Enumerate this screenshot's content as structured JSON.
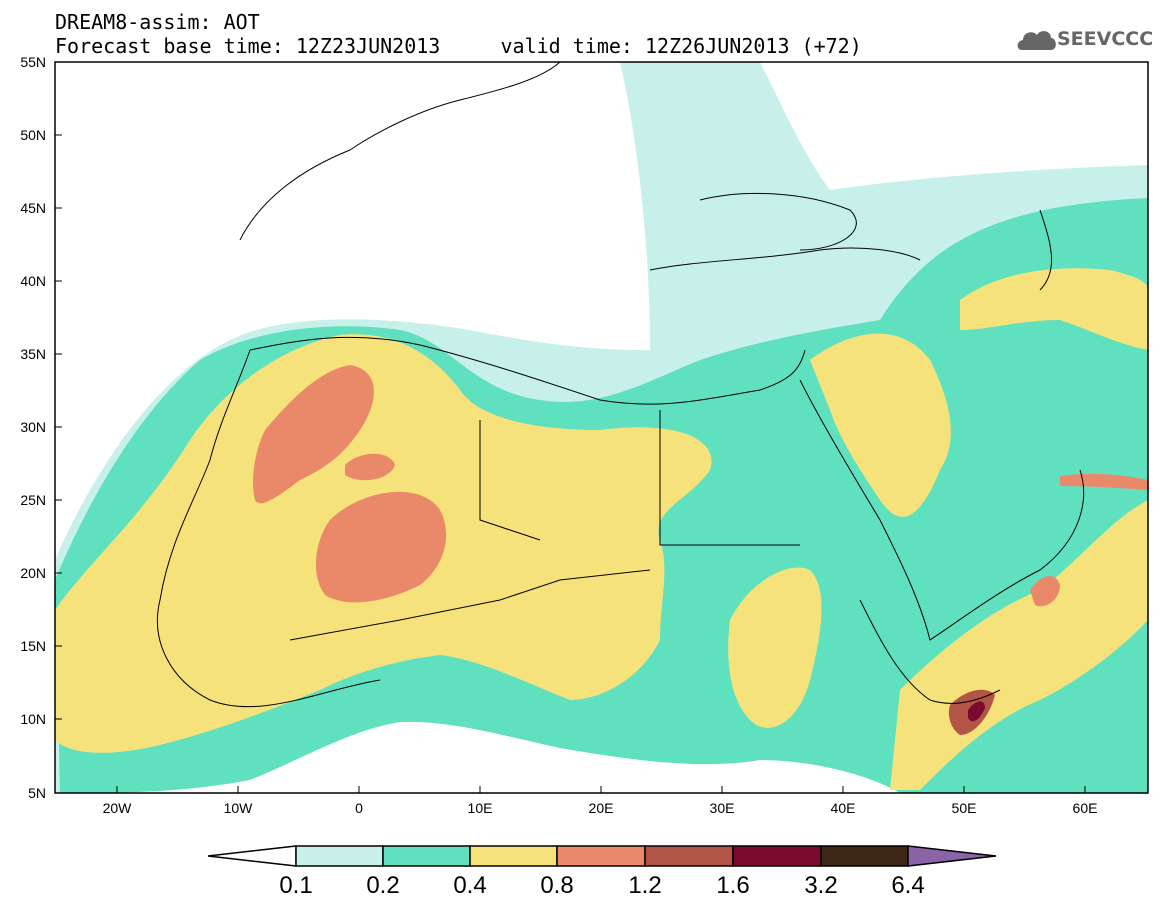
{
  "header": {
    "line1": "DREAM8-assim: AOT",
    "line2": "Forecast base time: 12Z23JUN2013     valid time: 12Z26JUN2013 (+72)",
    "logo_text": "SEEVCCC",
    "logo_icon": "cloud-icon"
  },
  "map": {
    "lat_labels": [
      "55N",
      "50N",
      "45N",
      "40N",
      "35N",
      "30N",
      "25N",
      "20N",
      "15N",
      "10N",
      "5N"
    ],
    "lon_labels": [
      "20W",
      "10W",
      "0",
      "10E",
      "20E",
      "30E",
      "40E",
      "50E",
      "60E"
    ]
  },
  "colorbar": {
    "labels": [
      "0.1",
      "0.2",
      "0.4",
      "0.8",
      "1.2",
      "1.6",
      "3.2",
      "6.4"
    ],
    "colors": [
      "#ffffff",
      "#c8f0ea",
      "#5fe0bf",
      "#f6e27a",
      "#e9896a",
      "#b25446",
      "#7a0a2e",
      "#3d2616",
      "#8a63a8"
    ]
  }
}
